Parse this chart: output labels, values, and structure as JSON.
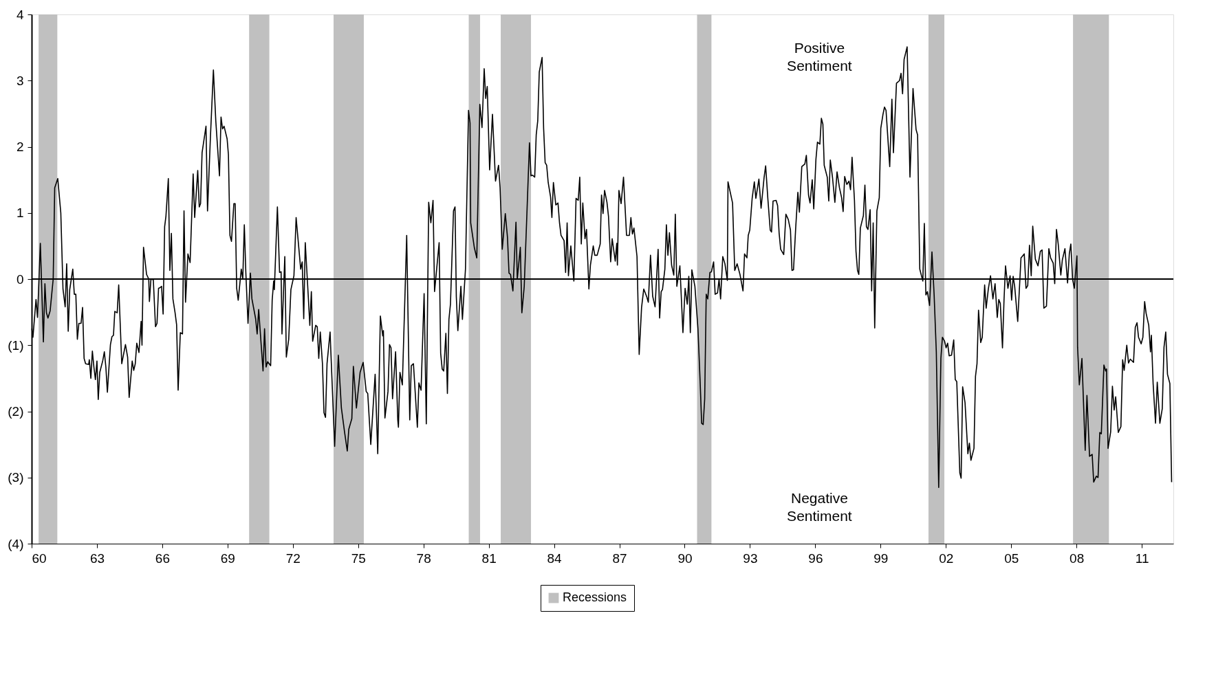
{
  "chart_data": {
    "type": "line",
    "annotations": [
      "Positive\nSentiment",
      "Negative\nSentiment"
    ],
    "xlim": [
      1960,
      2012.45
    ],
    "xticks": [
      {
        "value": 1960,
        "label": "60"
      },
      {
        "value": 1963,
        "label": "63"
      },
      {
        "value": 1966,
        "label": "66"
      },
      {
        "value": 1969,
        "label": "69"
      },
      {
        "value": 1972,
        "label": "72"
      },
      {
        "value": 1975,
        "label": "75"
      },
      {
        "value": 1978,
        "label": "78"
      },
      {
        "value": 1981,
        "label": "81"
      },
      {
        "value": 1984,
        "label": "84"
      },
      {
        "value": 1987,
        "label": "87"
      },
      {
        "value": 1990,
        "label": "90"
      },
      {
        "value": 1993,
        "label": "93"
      },
      {
        "value": 1996,
        "label": "96"
      },
      {
        "value": 1999,
        "label": "99"
      },
      {
        "value": 2002,
        "label": "02"
      },
      {
        "value": 2005,
        "label": "05"
      },
      {
        "value": 2008,
        "label": "08"
      },
      {
        "value": 2011,
        "label": "11"
      }
    ],
    "ylim": [
      -4,
      4
    ],
    "yticks": [
      4,
      3,
      2,
      1,
      0,
      {
        "value": -1,
        "label": "(1)"
      },
      {
        "value": -2,
        "label": "(2)"
      },
      {
        "value": -3,
        "label": "(3)"
      },
      {
        "value": -4,
        "label": "(4)"
      }
    ],
    "grid": false,
    "legend": "bottom",
    "marker": "none",
    "line_style": "solid",
    "ref_lines": [
      {
        "axis": "y",
        "value": 0,
        "color": "#000000"
      }
    ],
    "bands": [
      {
        "axis": "x",
        "from": 1960.32,
        "to": 1961.18,
        "label": "Recessions",
        "color": "#c0c0c0"
      },
      {
        "axis": "x",
        "from": 1969.99,
        "to": 1970.92,
        "color": "#c0c0c0"
      },
      {
        "axis": "x",
        "from": 1973.87,
        "to": 1975.26,
        "color": "#c0c0c0"
      },
      {
        "axis": "x",
        "from": 1980.08,
        "to": 1980.6,
        "color": "#c0c0c0"
      },
      {
        "axis": "x",
        "from": 1981.55,
        "to": 1982.94,
        "color": "#c0c0c0"
      },
      {
        "axis": "x",
        "from": 1990.57,
        "to": 1991.23,
        "color": "#c0c0c0"
      },
      {
        "axis": "x",
        "from": 2001.2,
        "to": 2001.93,
        "color": "#c0c0c0"
      },
      {
        "axis": "x",
        "from": 2007.84,
        "to": 2009.49,
        "color": "#c0c0c0"
      }
    ],
    "series": [
      {
        "color": "#000000",
        "x": [
          1960.01,
          1960.06,
          1960.2,
          1960.27,
          1960.4,
          1960.54,
          1960.61,
          1960.68,
          1960.75,
          1960.85,
          1960.99,
          1961.06,
          1961.2,
          1961.34,
          1961.44,
          1961.54,
          1961.61,
          1961.68,
          1961.75,
          1961.89,
          1961.96,
          1962.03,
          1962.1,
          1962.17,
          1962.27,
          1962.34,
          1962.41,
          1962.48,
          1962.62,
          1962.65,
          1962.72,
          1962.79,
          1962.86,
          1962.93,
          1963.0,
          1963.06,
          1963.13,
          1963.27,
          1963.34,
          1963.41,
          1963.48,
          1963.62,
          1963.69,
          1963.76,
          1963.82,
          1963.93,
          1964.0,
          1964.14,
          1964.31,
          1964.41,
          1964.48,
          1964.62,
          1964.69,
          1964.76,
          1964.83,
          1964.93,
          1965.03,
          1965.07,
          1965.14,
          1965.28,
          1965.38,
          1965.41,
          1965.48,
          1965.59,
          1965.69,
          1965.76,
          1965.83,
          1965.9,
          1965.97,
          1966.04,
          1966.11,
          1966.17,
          1966.28,
          1966.35,
          1966.42,
          1966.49,
          1966.59,
          1966.66,
          1966.73,
          1966.83,
          1966.93,
          1967.0,
          1967.07,
          1967.18,
          1967.28,
          1967.42,
          1967.49,
          1967.63,
          1967.7,
          1967.76,
          1967.83,
          1968.01,
          1968.08,
          1968.21,
          1968.35,
          1968.46,
          1968.63,
          1968.7,
          1968.77,
          1968.84,
          1968.98,
          1969.04,
          1969.11,
          1969.18,
          1969.29,
          1969.35,
          1969.42,
          1969.49,
          1969.63,
          1969.7,
          1969.77,
          1969.84,
          1969.94,
          1970.05,
          1970.12,
          1970.29,
          1970.36,
          1970.43,
          1970.63,
          1970.7,
          1970.77,
          1970.84,
          1970.98,
          1971.05,
          1971.12,
          1971.15,
          1971.29,
          1971.39,
          1971.46,
          1971.5,
          1971.63,
          1971.7,
          1971.81,
          1971.91,
          1972.05,
          1972.15,
          1972.36,
          1972.43,
          1972.5,
          1972.57,
          1972.71,
          1972.78,
          1972.85,
          1972.91,
          1973.05,
          1973.12,
          1973.19,
          1973.26,
          1973.36,
          1973.43,
          1973.5,
          1973.57,
          1973.71,
          1973.92,
          1974.09,
          1974.23,
          1974.37,
          1974.5,
          1974.57,
          1974.71,
          1974.78,
          1974.92,
          1975.09,
          1975.23,
          1975.37,
          1975.44,
          1975.58,
          1975.78,
          1975.9,
          1976.02,
          1976.13,
          1976.16,
          1976.23,
          1976.37,
          1976.44,
          1976.51,
          1976.58,
          1976.72,
          1976.82,
          1976.85,
          1976.92,
          1977.03,
          1977.23,
          1977.37,
          1977.44,
          1977.54,
          1977.72,
          1977.79,
          1977.89,
          1978.03,
          1978.13,
          1978.24,
          1978.34,
          1978.44,
          1978.51,
          1978.72,
          1978.79,
          1978.86,
          1978.93,
          1979.03,
          1979.1,
          1979.17,
          1979.24,
          1979.38,
          1979.45,
          1979.51,
          1979.58,
          1979.72,
          1979.79,
          1979.93,
          1980.07,
          1980.14,
          1980.17,
          1980.34,
          1980.45,
          1980.59,
          1980.69,
          1980.79,
          1980.86,
          1980.93,
          1981.04,
          1981.17,
          1981.31,
          1981.45,
          1981.52,
          1981.62,
          1981.76,
          1981.86,
          1981.93,
          1982.0,
          1982.11,
          1982.25,
          1982.31,
          1982.45,
          1982.52,
          1982.63,
          1982.76,
          1982.87,
          1982.94,
          1983.01,
          1983.11,
          1983.18,
          1983.25,
          1983.32,
          1983.45,
          1983.52,
          1983.59,
          1983.66,
          1983.73,
          1983.84,
          1983.9,
          1983.97,
          1984.08,
          1984.18,
          1984.25,
          1984.32,
          1984.46,
          1984.53,
          1984.6,
          1984.66,
          1984.77,
          1984.91,
          1985.01,
          1985.11,
          1985.18,
          1985.25,
          1985.32,
          1985.42,
          1985.49,
          1985.6,
          1985.67,
          1985.8,
          1985.87,
          1985.98,
          1986.12,
          1986.18,
          1986.25,
          1986.32,
          1986.43,
          1986.5,
          1986.6,
          1986.67,
          1986.81,
          1986.88,
          1986.91,
          1986.98,
          1987.08,
          1987.19,
          1987.33,
          1987.46,
          1987.53,
          1987.6,
          1987.67,
          1987.81,
          1987.91,
          1988.02,
          1988.12,
          1988.26,
          1988.33,
          1988.43,
          1988.53,
          1988.64,
          1988.78,
          1988.85,
          1988.92,
          1988.98,
          1989.09,
          1989.16,
          1989.23,
          1989.3,
          1989.4,
          1989.5,
          1989.57,
          1989.64,
          1989.78,
          1989.92,
          1990.02,
          1990.12,
          1990.19,
          1990.26,
          1990.33,
          1990.47,
          1990.61,
          1990.71,
          1990.78,
          1990.85,
          1990.92,
          1990.99,
          1991.06,
          1991.16,
          1991.23,
          1991.33,
          1991.4,
          1991.51,
          1991.58,
          1991.65,
          1991.75,
          1991.85,
          1991.96,
          1991.99,
          1992.2,
          1992.3,
          1992.41,
          1992.54,
          1992.68,
          1992.75,
          1992.86,
          1992.92,
          1992.99,
          1993.1,
          1993.2,
          1993.27,
          1993.41,
          1993.51,
          1993.65,
          1993.72,
          1993.82,
          1993.93,
          1993.99,
          1994.06,
          1994.2,
          1994.27,
          1994.34,
          1994.41,
          1994.55,
          1994.65,
          1994.76,
          1994.86,
          1994.93,
          1995.0,
          1995.1,
          1995.2,
          1995.27,
          1995.38,
          1995.52,
          1995.59,
          1995.69,
          1995.76,
          1995.86,
          1995.93,
          1996.03,
          1996.1,
          1996.21,
          1996.28,
          1996.35,
          1996.41,
          1996.55,
          1996.62,
          1996.69,
          1996.79,
          1996.9,
          1997.0,
          1997.11,
          1997.21,
          1997.28,
          1997.35,
          1997.45,
          1997.55,
          1997.62,
          1997.69,
          1997.8,
          1997.87,
          1997.94,
          1998.0,
          1998.07,
          1998.21,
          1998.28,
          1998.35,
          1998.42,
          1998.52,
          1998.59,
          1998.66,
          1998.73,
          1998.83,
          1998.94,
          1999.01,
          1999.11,
          1999.18,
          1999.25,
          1999.42,
          1999.52,
          1999.59,
          1999.73,
          1999.87,
          1999.94,
          2000.01,
          2000.08,
          2000.22,
          2000.35,
          2000.49,
          2000.63,
          2000.7,
          2000.8,
          2000.94,
          2001.01,
          2001.08,
          2001.15,
          2001.25,
          2001.36,
          2001.46,
          2001.56,
          2001.67,
          2001.77,
          2001.84,
          2001.94,
          2002.01,
          2002.08,
          2002.15,
          2002.26,
          2002.36,
          2002.43,
          2002.5,
          2002.64,
          2002.7,
          2002.77,
          2002.88,
          2003.01,
          2003.08,
          2003.15,
          2003.29,
          2003.36,
          2003.43,
          2003.5,
          2003.6,
          2003.67,
          2003.78,
          2003.85,
          2003.95,
          2004.05,
          2004.16,
          2004.26,
          2004.36,
          2004.43,
          2004.5,
          2004.6,
          2004.67,
          2004.74,
          2004.85,
          2004.95,
          2005.02,
          2005.09,
          2005.16,
          2005.3,
          2005.45,
          2005.6,
          2005.68,
          2005.76,
          2005.84,
          2005.92,
          2005.99,
          2006.11,
          2006.23,
          2006.34,
          2006.42,
          2006.5,
          2006.62,
          2006.73,
          2006.81,
          2006.93,
          2007.0,
          2007.08,
          2007.16,
          2007.28,
          2007.35,
          2007.47,
          2007.59,
          2007.67,
          2007.74,
          2007.82,
          2007.9,
          2008.02,
          2008.05,
          2008.13,
          2008.25,
          2008.4,
          2008.48,
          2008.6,
          2008.72,
          2008.79,
          2008.91,
          2008.99,
          2009.07,
          2009.14,
          2009.26,
          2009.34,
          2009.38,
          2009.45,
          2009.57,
          2009.65,
          2009.73,
          2009.8,
          2009.92,
          2010.04,
          2010.12,
          2010.19,
          2010.31,
          2010.39,
          2010.47,
          2010.62,
          2010.7,
          2010.78,
          2010.85,
          2010.97,
          2011.05,
          2011.13,
          2011.2,
          2011.32,
          2011.4,
          2011.44,
          2011.52,
          2011.63,
          2011.71,
          2011.83,
          2011.94,
          2012.02,
          2012.1,
          2012.18,
          2012.29,
          2012.37
        ],
        "values": [
          -0.75,
          -0.88,
          -0.31,
          -0.58,
          0.54,
          -0.95,
          -0.07,
          -0.51,
          -0.59,
          -0.48,
          0,
          1.38,
          1.52,
          1.0,
          -0.15,
          -0.42,
          0.23,
          -0.79,
          -0.16,
          0.15,
          -0.23,
          -0.23,
          -0.91,
          -0.67,
          -0.67,
          -0.43,
          -1.2,
          -1.28,
          -1.29,
          -1.22,
          -1.5,
          -1.09,
          -1.33,
          -1.52,
          -1.24,
          -1.82,
          -1.41,
          -1.23,
          -1.1,
          -1.33,
          -1.71,
          -0.99,
          -0.87,
          -0.85,
          -0.49,
          -0.51,
          -0.09,
          -1.28,
          -0.99,
          -1.18,
          -1.79,
          -1.24,
          -1.38,
          -1.28,
          -0.97,
          -1.11,
          -0.64,
          -1.0,
          0.48,
          0.07,
          0.0,
          -0.34,
          0.0,
          -0.01,
          -0.72,
          -0.67,
          -0.14,
          -0.13,
          -0.11,
          -0.53,
          0.79,
          0.95,
          1.52,
          0.13,
          0.69,
          -0.3,
          -0.51,
          -0.69,
          -1.68,
          -0.81,
          -0.83,
          1.03,
          -0.35,
          0.38,
          0.25,
          1.59,
          0.93,
          1.64,
          1.09,
          1.14,
          1.91,
          2.31,
          1.03,
          2.12,
          3.16,
          2.39,
          1.56,
          2.45,
          2.27,
          2.31,
          2.12,
          1.88,
          0.66,
          0.57,
          1.14,
          1.14,
          -0.14,
          -0.32,
          0.15,
          0,
          0.82,
          0.1,
          -0.67,
          0.09,
          -0.3,
          -0.6,
          -0.83,
          -0.46,
          -1.39,
          -0.75,
          -1.33,
          -1.25,
          -1.31,
          -0.32,
          -0.03,
          -0.16,
          1.09,
          0.1,
          0.11,
          -0.83,
          0.34,
          -1.18,
          -0.91,
          -0.16,
          0.05,
          0.93,
          0.15,
          0.26,
          -0.6,
          0.55,
          -0.27,
          -0.7,
          -0.19,
          -0.94,
          -0.7,
          -0.72,
          -1.2,
          -0.8,
          -1.28,
          -2.02,
          -2.09,
          -1.28,
          -0.8,
          -2.53,
          -1.15,
          -1.95,
          -2.3,
          -2.6,
          -2.27,
          -2.11,
          -1.32,
          -1.95,
          -1.41,
          -1.26,
          -1.7,
          -1.73,
          -2.5,
          -1.44,
          -2.64,
          -0.56,
          -0.86,
          -0.78,
          -2.1,
          -1.7,
          -0.99,
          -1.04,
          -1.81,
          -1.1,
          -2.13,
          -2.24,
          -1.41,
          -1.6,
          0.66,
          -2.13,
          -1.31,
          -1.28,
          -2.24,
          -1.57,
          -1.68,
          -0.22,
          -2.19,
          1.16,
          0.85,
          1.19,
          -0.19,
          0.55,
          -1.12,
          -1.36,
          -1.39,
          -0.82,
          -1.73,
          -0.61,
          -0.38,
          1.03,
          1.09,
          -0.27,
          -0.78,
          -0.11,
          -0.61,
          0.15,
          2.55,
          2.36,
          0.85,
          0.47,
          0.32,
          2.64,
          2.29,
          3.18,
          2.73,
          2.91,
          1.65,
          2.49,
          1.48,
          1.72,
          1.38,
          0.45,
          0.99,
          0.63,
          0.09,
          0.07,
          -0.18,
          0.86,
          0.0,
          0.48,
          -0.51,
          -0.11,
          1.06,
          2.06,
          1.56,
          1.57,
          1.54,
          2.18,
          2.39,
          3.13,
          3.35,
          2.28,
          1.76,
          1.72,
          1.46,
          1.24,
          0.93,
          1.46,
          1.12,
          1.15,
          0.85,
          0.66,
          0.58,
          0.1,
          0.85,
          0.05,
          0.5,
          -0.03,
          1.22,
          1.19,
          1.54,
          0.53,
          1.15,
          0.61,
          0.75,
          -0.15,
          0.21,
          0.5,
          0.36,
          0.36,
          0.53,
          1.27,
          0.99,
          1.34,
          1.16,
          0.95,
          0.26,
          0.61,
          0.27,
          0.54,
          0.21,
          1.34,
          1.14,
          1.54,
          0.66,
          0.66,
          0.93,
          0.68,
          0.77,
          0.34,
          -1.14,
          -0.43,
          -0.15,
          -0.27,
          -0.35,
          0.36,
          -0.26,
          -0.42,
          0.45,
          -0.59,
          -0.19,
          -0.16,
          0.15,
          0.82,
          0.36,
          0.7,
          0.21,
          0.06,
          0.98,
          -0.11,
          0.2,
          -0.81,
          -0.14,
          -0.38,
          0.04,
          -0.81,
          0.14,
          -0.11,
          -0.75,
          -1.55,
          -2.18,
          -2.2,
          -1.81,
          -0.23,
          -0.3,
          0.1,
          0.11,
          0.26,
          -0.23,
          -0.21,
          0.0,
          -0.3,
          0.34,
          0.23,
          -0.02,
          1.47,
          1.15,
          0.13,
          0.23,
          0.07,
          -0.18,
          0.38,
          0.32,
          0.66,
          0.74,
          1.22,
          1.47,
          1.22,
          1.51,
          1.07,
          1.54,
          1.71,
          1.22,
          0.74,
          0.71,
          1.18,
          1.19,
          1.11,
          0.69,
          0.45,
          0.37,
          0.98,
          0.9,
          0.74,
          0.13,
          0.14,
          0.77,
          1.31,
          1.01,
          1.7,
          1.74,
          1.87,
          1.27,
          1.15,
          1.5,
          1.06,
          1.81,
          2.07,
          2.04,
          2.43,
          2.34,
          1.72,
          1.54,
          1.18,
          1.8,
          1.54,
          1.16,
          1.62,
          1.38,
          1.23,
          1.02,
          1.55,
          1.43,
          1.48,
          1.35,
          1.84,
          1.19,
          0.42,
          0.13,
          0.07,
          0.77,
          0.96,
          1.42,
          0.79,
          0.75,
          1.05,
          -0.18,
          0.85,
          -0.74,
          1.03,
          1.23,
          2.28,
          2.49,
          2.6,
          2.55,
          1.7,
          2.72,
          1.91,
          2.96,
          3.0,
          3.11,
          2.8,
          3.32,
          3.51,
          1.54,
          2.88,
          2.26,
          2.18,
          0.15,
          -0.03,
          0.84,
          -0.24,
          -0.19,
          -0.4,
          0.41,
          -0.24,
          -1.1,
          -3.15,
          -1.2,
          -0.88,
          -0.94,
          -1.04,
          -0.97,
          -1.16,
          -1.15,
          -0.92,
          -1.52,
          -1.55,
          -2.93,
          -3.01,
          -1.63,
          -1.87,
          -2.64,
          -2.48,
          -2.74,
          -2.56,
          -1.47,
          -1.28,
          -0.47,
          -0.96,
          -0.88,
          -0.09,
          -0.44,
          -0.15,
          0.05,
          -0.3,
          -0.07,
          -0.58,
          -0.31,
          -0.37,
          -1.04,
          -0.32,
          0.2,
          -0.14,
          0.05,
          -0.32,
          0.04,
          -0.11,
          -0.64,
          0.32,
          0.38,
          -0.14,
          -0.1,
          0.51,
          0.05,
          0.8,
          0.3,
          0.2,
          0.42,
          0.44,
          -0.44,
          -0.41,
          0.46,
          0.32,
          0.24,
          -0.07,
          0.75,
          0.53,
          0.06,
          0.29,
          0.46,
          -0.06,
          0.38,
          0.53,
          0.0,
          -0.14,
          0.35,
          -1.03,
          -1.6,
          -1.2,
          -2.59,
          -1.76,
          -2.68,
          -2.65,
          -3.07,
          -2.98,
          -3.0,
          -2.32,
          -2.34,
          -1.3,
          -1.39,
          -1.36,
          -2.56,
          -2.31,
          -1.62,
          -1.98,
          -1.78,
          -2.32,
          -2.23,
          -1.22,
          -1.38,
          -1.0,
          -1.27,
          -1.21,
          -1.26,
          -0.73,
          -0.66,
          -0.88,
          -0.98,
          -0.88,
          -0.34,
          -0.52,
          -0.7,
          -1.1,
          -0.85,
          -1.58,
          -2.18,
          -1.56,
          -2.18,
          -1.96,
          -1.03,
          -0.8,
          -1.44,
          -1.58,
          -3.07
        ]
      }
    ]
  }
}
